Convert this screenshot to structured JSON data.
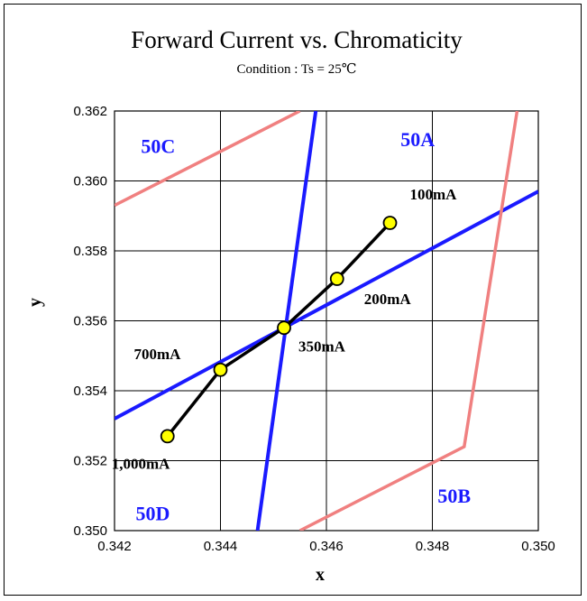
{
  "chart_data": {
    "type": "line",
    "title": "Forward Current vs. Chromaticity",
    "subtitle": "Condition : Ts = 25℃",
    "xlabel": "x",
    "ylabel": "y",
    "xlim": [
      0.342,
      0.35
    ],
    "ylim": [
      0.35,
      0.362
    ],
    "x_ticks": [
      "0.342",
      "0.344",
      "0.346",
      "0.348",
      "0.350"
    ],
    "y_ticks": [
      "0.350",
      "0.352",
      "0.354",
      "0.356",
      "0.358",
      "0.360",
      "0.362"
    ],
    "grid": true,
    "measurement": {
      "points": [
        {
          "x": 0.343,
          "y": 0.3527,
          "label": "1,000mA"
        },
        {
          "x": 0.344,
          "y": 0.3546,
          "label": "700mA"
        },
        {
          "x": 0.3452,
          "y": 0.3558,
          "label": "350mA"
        },
        {
          "x": 0.3462,
          "y": 0.3572,
          "label": "200mA"
        },
        {
          "x": 0.3472,
          "y": 0.3588,
          "label": "100mA"
        }
      ],
      "line_color": "#000000",
      "marker_color": "#ffff00"
    },
    "bin_boundaries": [
      {
        "points": [
          [
            0.342,
            0.3532
          ],
          [
            0.35,
            0.3597
          ]
        ],
        "color": "#1a1aff"
      },
      {
        "points": [
          [
            0.3447,
            0.35
          ],
          [
            0.3458,
            0.362
          ]
        ],
        "color": "#1a1aff"
      },
      {
        "points": [
          [
            0.342,
            0.3593
          ],
          [
            0.3455,
            0.362
          ]
        ],
        "color": "#f08080"
      },
      {
        "points": [
          [
            0.3455,
            0.35
          ],
          [
            0.3486,
            0.3524
          ],
          [
            0.3496,
            0.362
          ]
        ],
        "color": "#f08080"
      }
    ],
    "region_labels": [
      {
        "text": "50C",
        "x": 0.3425,
        "y": 0.3608
      },
      {
        "text": "50A",
        "x": 0.3474,
        "y": 0.361
      },
      {
        "text": "50D",
        "x": 0.3424,
        "y": 0.3503
      },
      {
        "text": "50B",
        "x": 0.3481,
        "y": 0.3508
      }
    ]
  }
}
